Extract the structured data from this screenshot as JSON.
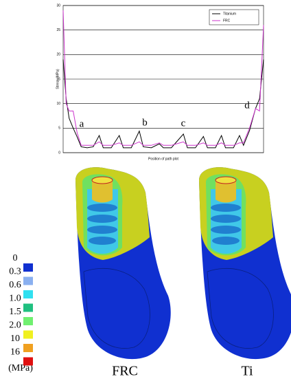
{
  "chart_data": {
    "type": "line",
    "y_label": "Stress (MPa)",
    "x_label": "Position of path plot",
    "x": [
      0,
      1.5,
      3,
      5,
      7,
      9,
      12,
      15,
      18,
      20,
      24,
      28,
      30,
      34,
      38,
      40,
      44,
      48,
      50,
      54,
      60,
      62,
      66,
      70,
      72,
      76,
      79,
      81,
      85,
      88,
      90,
      93,
      96,
      98,
      100
    ],
    "xlim": [
      0,
      100
    ],
    "series": [
      {
        "name": "Titanium",
        "color": "#000000",
        "values": [
          19,
          11,
          7,
          5,
          3.2,
          1.2,
          1.0,
          1.2,
          3.5,
          1.0,
          1.0,
          3.5,
          1.0,
          1.0,
          4.4,
          1.2,
          1.0,
          1.8,
          1.0,
          1.0,
          3.8,
          1.0,
          1.0,
          3.3,
          1.0,
          1.0,
          3.5,
          1.0,
          1.0,
          3.5,
          1.5,
          4.5,
          9,
          11,
          19
        ]
      },
      {
        "name": "FRC",
        "color": "#cc33cc",
        "values": [
          29,
          10,
          8.5,
          8.5,
          4,
          1.5,
          1.5,
          1.5,
          2.2,
          1.5,
          1.5,
          2.0,
          1.5,
          1.5,
          2.2,
          1.5,
          1.5,
          2.0,
          1.5,
          1.5,
          2.2,
          1.5,
          1.5,
          2.0,
          1.5,
          1.5,
          2.0,
          1.5,
          1.5,
          2.0,
          2.0,
          5,
          9,
          8.5,
          26
        ]
      }
    ],
    "ylim": [
      0,
      30
    ],
    "yticks": [
      0,
      5,
      10,
      15,
      20,
      25,
      30
    ],
    "grid": true,
    "legend": "top-right",
    "annotations": [
      "a",
      "b",
      "c",
      "d"
    ]
  },
  "stress_scale": {
    "labels": [
      "0",
      "0.3",
      "0.6",
      "1.0",
      "1.5",
      "2.0",
      "10",
      "16"
    ],
    "unit": "(MPa)",
    "colors": [
      "#1030d0",
      "#8ab0f0",
      "#30e0f0",
      "#20c080",
      "#70f070",
      "#f0f020",
      "#f0a020",
      "#e01010"
    ]
  },
  "models": [
    "FRC",
    "Ti"
  ]
}
